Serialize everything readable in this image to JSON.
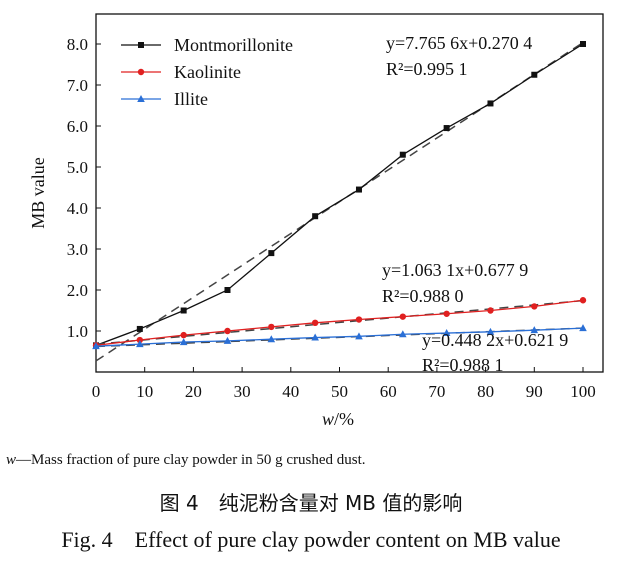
{
  "chart_data": {
    "type": "line",
    "xlabel_var": "w",
    "xlabel_unit": "/%",
    "ylabel": "MB value",
    "xlim": [
      0,
      100
    ],
    "ylim": [
      0,
      8.5
    ],
    "xticks": [
      0,
      10,
      20,
      30,
      40,
      50,
      60,
      70,
      80,
      90,
      100
    ],
    "yticks": [
      1.0,
      2.0,
      3.0,
      4.0,
      5.0,
      6.0,
      7.0,
      8.0
    ],
    "legend_position": "top-left",
    "series": [
      {
        "name": "Montmorillonite",
        "color": "#111111",
        "marker": "square",
        "x": [
          0,
          9,
          18,
          27,
          36,
          45,
          54,
          63,
          72,
          81,
          90,
          100
        ],
        "y": [
          0.65,
          1.05,
          1.5,
          2.0,
          2.9,
          3.8,
          4.45,
          5.3,
          5.95,
          6.55,
          7.25,
          8.0
        ],
        "fit": {
          "slope": 0.077656,
          "intercept": 0.2704,
          "color": "#444444"
        },
        "equation": "y=7.765 6x+0.270 4",
        "r2": "R²=0.995 1"
      },
      {
        "name": "Kaolinite",
        "color": "#e02020",
        "marker": "circle",
        "x": [
          0,
          9,
          18,
          27,
          36,
          45,
          54,
          63,
          72,
          81,
          90,
          100
        ],
        "y": [
          0.65,
          0.78,
          0.9,
          1.0,
          1.1,
          1.2,
          1.28,
          1.35,
          1.42,
          1.5,
          1.6,
          1.75
        ],
        "fit": {
          "slope": 0.010631,
          "intercept": 0.6779,
          "color": "#444444"
        },
        "equation": "y=1.063 1x+0.677 9",
        "r2": "R²=0.988 0"
      },
      {
        "name": "Illite",
        "color": "#2a6fd6",
        "marker": "triangle",
        "x": [
          0,
          9,
          18,
          27,
          36,
          45,
          54,
          63,
          72,
          81,
          90,
          100
        ],
        "y": [
          0.63,
          0.68,
          0.73,
          0.76,
          0.8,
          0.84,
          0.87,
          0.92,
          0.95,
          0.98,
          1.02,
          1.07
        ],
        "fit": {
          "slope": 0.004482,
          "intercept": 0.6219,
          "color": "#444444"
        },
        "equation": "y=0.448 2x+0.621 9",
        "r2": "R²=0.988 1"
      }
    ]
  },
  "note": {
    "var": "w",
    "text": "—Mass fraction of pure clay powder in 50 g crushed dust."
  },
  "caption_cn": "图 4　纯泥粉含量对 MB 值的影响",
  "caption_en": "Fig. 4　Effect of pure clay powder content on MB value"
}
